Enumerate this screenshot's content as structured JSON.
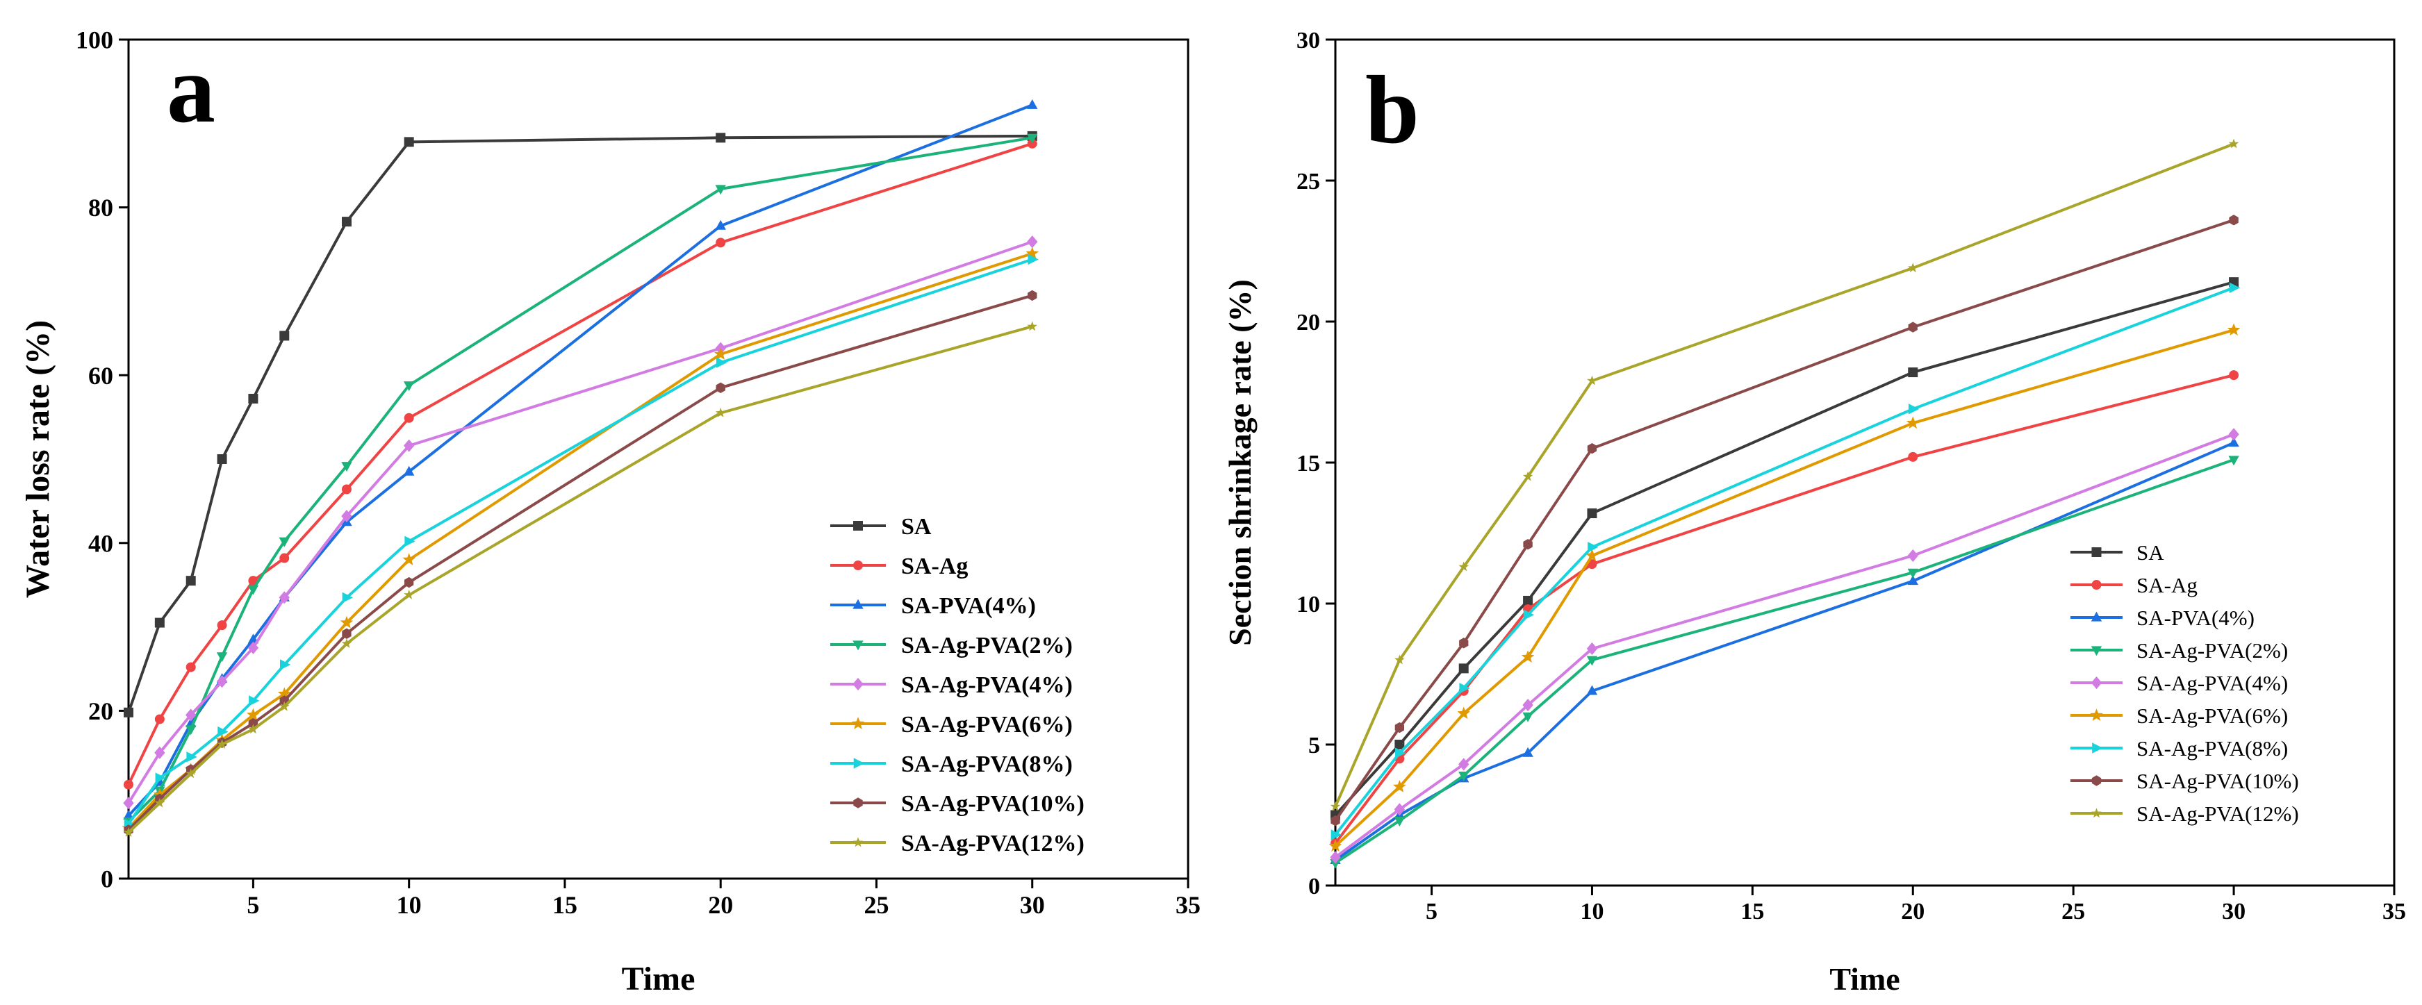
{
  "chart_data": [
    {
      "type": "line",
      "panel_label": "a",
      "title": "",
      "xlabel": "Time",
      "ylabel": "Water loss rate (%)",
      "xlim": [
        1,
        35
      ],
      "ylim": [
        0,
        100
      ],
      "x_ticks": [
        5,
        10,
        15,
        20,
        25,
        30,
        35
      ],
      "y_ticks": [
        0,
        20,
        40,
        60,
        80,
        100
      ],
      "legend_position": "bottom-right",
      "x": [
        1,
        2,
        3,
        4,
        5,
        6,
        8,
        10,
        20,
        30
      ],
      "series": [
        {
          "name": "SA",
          "color": "#3a3a3a",
          "marker": "square",
          "values": [
            19.8,
            30.5,
            35.5,
            50,
            57.2,
            64.7,
            78.3,
            87.8,
            88.3,
            88.5
          ]
        },
        {
          "name": "SA-Ag",
          "color": "#f04444",
          "marker": "circle",
          "values": [
            11.2,
            19,
            25.2,
            30.2,
            35.5,
            38.2,
            46.4,
            54.9,
            75.8,
            87.6
          ]
        },
        {
          "name": "SA-PVA(4%)",
          "color": "#1c6fe0",
          "marker": "triangle-up",
          "values": [
            7.5,
            11.5,
            18.5,
            23.8,
            28.5,
            33.5,
            42.5,
            48.5,
            77.8,
            92.2
          ]
        },
        {
          "name": "SA-Ag-PVA(2%)",
          "color": "#1bb37a",
          "marker": "triangle-down",
          "values": [
            6.8,
            10.5,
            17.8,
            26.5,
            34.5,
            40.2,
            49.2,
            58.8,
            82.2,
            88.3
          ]
        },
        {
          "name": "SA-Ag-PVA(4%)",
          "color": "#d27be3",
          "marker": "diamond",
          "values": [
            9,
            15,
            19.5,
            23.5,
            27.5,
            33.5,
            43.2,
            51.6,
            63.2,
            75.9
          ]
        },
        {
          "name": "SA-Ag-PVA(6%)",
          "color": "#e09a00",
          "marker": "star",
          "values": [
            6,
            10,
            13,
            16.5,
            19.5,
            22,
            30.5,
            38,
            62.5,
            74.5
          ]
        },
        {
          "name": "SA-Ag-PVA(8%)",
          "color": "#18d3dc",
          "marker": "arrow-right",
          "values": [
            6.5,
            12,
            14.5,
            17.5,
            21.2,
            25.5,
            33.5,
            40.2,
            61.5,
            73.8
          ]
        },
        {
          "name": "SA-Ag-PVA(10%)",
          "color": "#8b4a4a",
          "marker": "hexagon",
          "values": [
            5.8,
            9.5,
            13,
            16.2,
            18.5,
            21.2,
            29.2,
            35.3,
            58.5,
            69.5
          ]
        },
        {
          "name": "SA-Ag-PVA(12%)",
          "color": "#a8a52a",
          "marker": "star-small",
          "values": [
            5.5,
            9,
            12.5,
            16,
            17.8,
            20.5,
            28,
            33.8,
            55.5,
            65.8
          ]
        }
      ]
    },
    {
      "type": "line",
      "panel_label": "b",
      "title": "",
      "xlabel": "Time",
      "ylabel": "Section shrinkage rate (%)",
      "xlim": [
        2,
        35
      ],
      "ylim": [
        0,
        30
      ],
      "x_ticks": [
        5,
        10,
        15,
        20,
        25,
        30,
        35
      ],
      "y_ticks": [
        0,
        5,
        10,
        15,
        20,
        25,
        30
      ],
      "legend_position": "bottom-right",
      "x": [
        2,
        4,
        6,
        8,
        10,
        20,
        30
      ],
      "series": [
        {
          "name": "SA",
          "color": "#3a3a3a",
          "marker": "square",
          "values": [
            2.5,
            5,
            7.7,
            10.1,
            13.2,
            18.2,
            21.4
          ]
        },
        {
          "name": "SA-Ag",
          "color": "#f04444",
          "marker": "circle",
          "values": [
            1.5,
            4.5,
            6.9,
            9.8,
            11.4,
            15.2,
            18.1
          ]
        },
        {
          "name": "SA-PVA(4%)",
          "color": "#1c6fe0",
          "marker": "triangle-up",
          "values": [
            0.9,
            2.5,
            3.8,
            4.7,
            6.9,
            10.8,
            15.7
          ]
        },
        {
          "name": "SA-Ag-PVA(2%)",
          "color": "#1bb37a",
          "marker": "triangle-down",
          "values": [
            0.8,
            2.3,
            3.9,
            6,
            8,
            11.1,
            15.1
          ]
        },
        {
          "name": "SA-Ag-PVA(4%)",
          "color": "#d27be3",
          "marker": "diamond",
          "values": [
            1,
            2.7,
            4.3,
            6.4,
            8.4,
            11.7,
            16
          ]
        },
        {
          "name": "SA-Ag-PVA(6%)",
          "color": "#e09a00",
          "marker": "star",
          "values": [
            1.4,
            3.5,
            6.1,
            8.1,
            11.7,
            16.4,
            19.7
          ]
        },
        {
          "name": "SA-Ag-PVA(8%)",
          "color": "#18d3dc",
          "marker": "arrow-right",
          "values": [
            1.8,
            4.7,
            7,
            9.6,
            12,
            16.9,
            21.2
          ]
        },
        {
          "name": "SA-Ag-PVA(10%)",
          "color": "#8b4a4a",
          "marker": "hexagon",
          "values": [
            2.3,
            5.6,
            8.6,
            12.1,
            15.5,
            19.8,
            23.6
          ]
        },
        {
          "name": "SA-Ag-PVA(12%)",
          "color": "#a8a52a",
          "marker": "star-small",
          "values": [
            2.8,
            8,
            11.3,
            14.5,
            17.9,
            21.9,
            26.3
          ]
        }
      ]
    }
  ]
}
